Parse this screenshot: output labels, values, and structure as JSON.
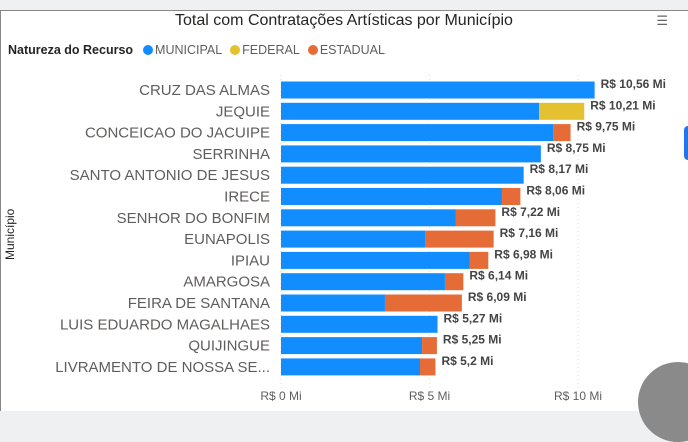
{
  "chart_data": {
    "type": "bar",
    "orientation": "horizontal",
    "stacked": true,
    "title": "Total com Contratações Artísticas por Município",
    "legend_title": "Natureza do Recurso",
    "legend_position": "top-left",
    "ylabel": "Município",
    "xlabel": "",
    "xlim": [
      0,
      11
    ],
    "x_ticks": [
      "R$ 0 Mi",
      "R$ 5 Mi",
      "R$ 10 Mi"
    ],
    "x_tick_values": [
      0,
      5,
      10
    ],
    "grid": true,
    "categories": [
      "CRUZ DAS ALMAS",
      "JEQUIE",
      "CONCEICAO DO JACUIPE",
      "SERRINHA",
      "SANTO ANTONIO DE JESUS",
      "IRECE",
      "SENHOR DO BONFIM",
      "EUNAPOLIS",
      "IPIAU",
      "AMARGOSA",
      "FEIRA DE SANTANA",
      "LUIS EDUARDO MAGALHAES",
      "QUIJINGUE",
      "LIVRAMENTO DE NOSSA SE..."
    ],
    "series": [
      {
        "name": "MUNICIPAL",
        "color": "#118dff",
        "values": [
          10.56,
          8.69,
          9.16,
          8.75,
          8.17,
          7.44,
          5.89,
          4.85,
          6.36,
          5.52,
          3.5,
          5.27,
          4.75,
          4.68
        ]
      },
      {
        "name": "FEDERAL",
        "color": "#e3c12f",
        "values": [
          0,
          1.52,
          0,
          0,
          0,
          0,
          0,
          0,
          0,
          0,
          0,
          0,
          0,
          0
        ]
      },
      {
        "name": "ESTADUAL",
        "color": "#e66c37",
        "values": [
          0,
          0,
          0.59,
          0,
          0,
          0.62,
          1.33,
          2.31,
          0.62,
          0.62,
          2.59,
          0,
          0.5,
          0.52
        ]
      }
    ],
    "data_labels": [
      "R$ 10,56 Mi",
      "R$ 10,21 Mi",
      "R$ 9,75 Mi",
      "R$ 8,75 Mi",
      "R$ 8,17 Mi",
      "R$ 8,06 Mi",
      "R$ 7,22 Mi",
      "R$ 7,16 Mi",
      "R$ 6,98 Mi",
      "R$ 6,14 Mi",
      "R$ 6,09 Mi",
      "R$ 5,27 Mi",
      "R$ 5,25 Mi",
      "R$ 5,2 Mi"
    ]
  }
}
